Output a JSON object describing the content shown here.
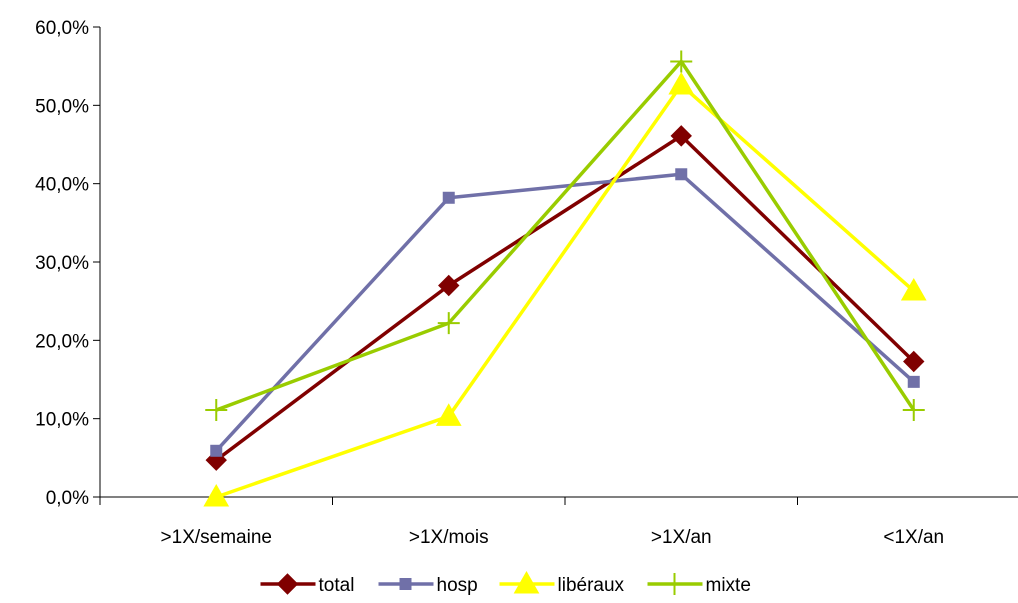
{
  "chart_data": {
    "type": "line",
    "categories": [
      ">1X/semaine",
      ">1X/mois",
      ">1X/an",
      "<1X/an"
    ],
    "ylim": [
      0,
      60
    ],
    "yticks": [
      0,
      10,
      20,
      30,
      40,
      50,
      60
    ],
    "ytick_labels": [
      "0,0%",
      "10,0%",
      "20,0%",
      "30,0%",
      "40,0%",
      "50,0%",
      "60,0%"
    ],
    "grid": false,
    "legend_position": "bottom",
    "series": [
      {
        "name": "total",
        "color": "#800000",
        "marker": "diamond",
        "values": [
          4.7,
          27.0,
          46.1,
          17.3
        ]
      },
      {
        "name": "hosp",
        "color": "#7070A8",
        "marker": "square",
        "values": [
          5.9,
          38.2,
          41.2,
          14.7
        ]
      },
      {
        "name": "libéraux",
        "color": "#FFFF00",
        "marker": "triangle",
        "values": [
          0.0,
          10.3,
          52.6,
          26.3
        ]
      },
      {
        "name": "mixte",
        "color": "#99CC00",
        "marker": "plus",
        "values": [
          11.1,
          22.2,
          55.6,
          11.1
        ]
      }
    ]
  }
}
